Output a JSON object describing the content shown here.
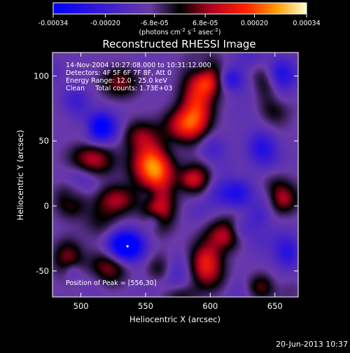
{
  "chart_data": {
    "type": "heatmap",
    "title": "Reconstructed RHESSI Image",
    "xlabel": "Heliocentric X (arcsec)",
    "ylabel": "Heliocentric Y (arcsec)",
    "xlim": [
      478,
      668
    ],
    "ylim": [
      -70,
      118
    ],
    "x_ticks": [
      500,
      550,
      600,
      650
    ],
    "y_ticks": [
      -50,
      0,
      50,
      100
    ],
    "colorbar": {
      "range": [
        -0.00034,
        0.00034
      ],
      "ticks": [
        {
          "value": -0.00034,
          "label": "-0.00034"
        },
        {
          "value": -0.0002,
          "label": "-0.00020"
        },
        {
          "value": -6.8e-05,
          "label": "-6.8e-05"
        },
        {
          "value": 6.8e-05,
          "label": "6.8e-05"
        },
        {
          "value": 0.0002,
          "label": "0.00020"
        },
        {
          "value": 0.00034,
          "label": "0.00034"
        }
      ],
      "unit_label_html": "(photons cm<tspan dy='-4' font-size='7'>-2</tspan><tspan dy='4'> s</tspan><tspan dy='-4' font-size='7'>-1</tspan><tspan dy='4'> asec</tspan><tspan dy='-4' font-size='7'>-2</tspan><tspan dy='4'>)</tspan>"
    },
    "annotations": [
      "14-Nov-2004 10:27:08.000 to 10:31:12.000",
      "Detectors: 4F 5F 6F 7F 8F, Att 0",
      "Energy Range: 12.0 - 25.0 keV",
      "Clean     Total counts: 1.73E+03"
    ],
    "peak_label": "Position of Peak = [556,30]",
    "peak": {
      "x": 556,
      "y": 30
    },
    "min_marker": {
      "x": 536,
      "y": -31
    },
    "sources": [
      {
        "x": 556,
        "y": 33,
        "amp": 1.0,
        "sx": 11,
        "sy": 13
      },
      {
        "x": 590,
        "y": 80,
        "amp": 0.72,
        "sx": 9,
        "sy": 20
      },
      {
        "x": 600,
        "y": 102,
        "amp": 0.55,
        "sx": 8,
        "sy": 10
      },
      {
        "x": 578,
        "y": 62,
        "amp": 0.55,
        "sx": 10,
        "sy": 9
      },
      {
        "x": 508,
        "y": 35,
        "amp": 0.62,
        "sx": 12,
        "sy": 9
      },
      {
        "x": 492,
        "y": 5,
        "amp": 0.5,
        "sx": 8,
        "sy": 9
      },
      {
        "x": 528,
        "y": 5,
        "amp": 0.5,
        "sx": 11,
        "sy": 8
      },
      {
        "x": 560,
        "y": 0,
        "amp": 0.58,
        "sx": 9,
        "sy": 10
      },
      {
        "x": 530,
        "y": 95,
        "amp": 0.45,
        "sx": 10,
        "sy": 8
      },
      {
        "x": 592,
        "y": 20,
        "amp": 0.48,
        "sx": 8,
        "sy": 9
      },
      {
        "x": 597,
        "y": -45,
        "amp": 0.75,
        "sx": 9,
        "sy": 12
      },
      {
        "x": 612,
        "y": -22,
        "amp": 0.55,
        "sx": 10,
        "sy": 8
      },
      {
        "x": 520,
        "y": -48,
        "amp": 0.5,
        "sx": 11,
        "sy": 9
      },
      {
        "x": 490,
        "y": -40,
        "amp": 0.45,
        "sx": 8,
        "sy": 10
      },
      {
        "x": 560,
        "y": -50,
        "amp": 0.42,
        "sx": 8,
        "sy": 8
      },
      {
        "x": 545,
        "y": 55,
        "amp": 0.35,
        "sx": 10,
        "sy": 8
      },
      {
        "x": 655,
        "y": 5,
        "amp": 0.42,
        "sx": 8,
        "sy": 8
      },
      {
        "x": 650,
        "y": 75,
        "amp": 0.32,
        "sx": 8,
        "sy": 8
      },
      {
        "x": 640,
        "y": -62,
        "amp": 0.4,
        "sx": 8,
        "sy": 7
      },
      {
        "x": 575,
        "y": -68,
        "amp": 0.42,
        "sx": 10,
        "sy": 6
      },
      {
        "x": 536,
        "y": -31,
        "amp": -0.95,
        "sx": 9,
        "sy": 8
      },
      {
        "x": 515,
        "y": 60,
        "amp": -0.55,
        "sx": 10,
        "sy": 8
      },
      {
        "x": 655,
        "y": 100,
        "amp": -0.6,
        "sx": 8,
        "sy": 9
      },
      {
        "x": 640,
        "y": 45,
        "amp": -0.45,
        "sx": 8,
        "sy": 9
      },
      {
        "x": 660,
        "y": -35,
        "amp": -0.45,
        "sx": 7,
        "sy": 9
      },
      {
        "x": 600,
        "y": 45,
        "amp": -0.3,
        "sx": 8,
        "sy": 8
      },
      {
        "x": 495,
        "y": 80,
        "amp": -0.35,
        "sx": 8,
        "sy": 8
      },
      {
        "x": 620,
        "y": 10,
        "amp": -0.35,
        "sx": 8,
        "sy": 8
      }
    ]
  },
  "footer": {
    "timestamp": "20-Jun-2013 10:37"
  }
}
